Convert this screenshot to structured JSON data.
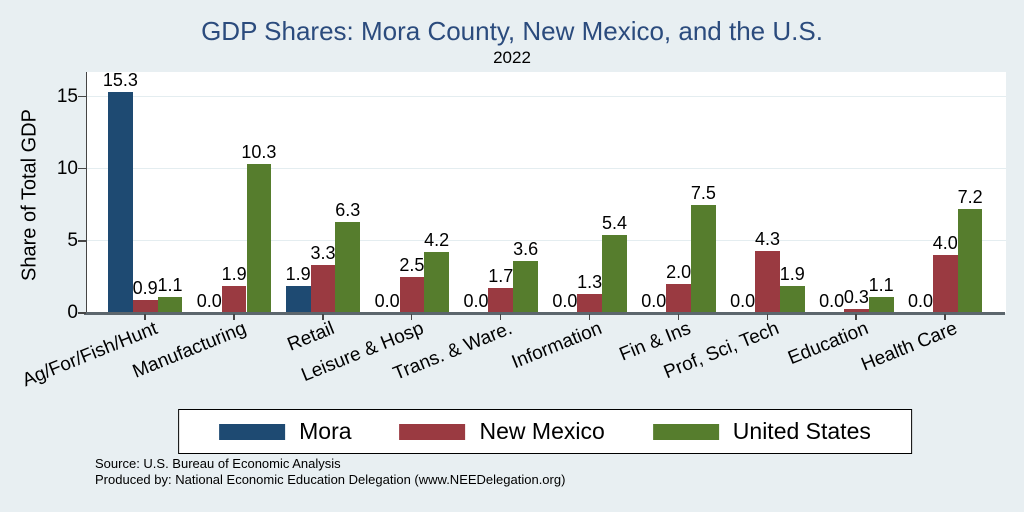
{
  "chart_data": {
    "type": "bar",
    "title": "GDP Shares: Mora County, New Mexico, and the U.S.",
    "subtitle": "2022",
    "xlabel": "",
    "ylabel": "Share of Total GDP",
    "categories": [
      "Ag/For/Fish/Hunt",
      "Manufacturing",
      "Retail",
      "Leisure & Hosp",
      "Trans. & Ware.",
      "Information",
      "Fin & Ins",
      "Prof, Sci, Tech",
      "Education",
      "Health Care"
    ],
    "series": [
      {
        "name": "Mora",
        "color": "#1e4a72",
        "values": [
          15.3,
          0.0,
          1.9,
          0.0,
          0.0,
          0.0,
          0.0,
          0.0,
          0.0,
          0.0
        ]
      },
      {
        "name": "New Mexico",
        "color": "#9a3a41",
        "values": [
          0.9,
          1.9,
          3.3,
          2.5,
          1.7,
          1.3,
          2.0,
          4.3,
          0.3,
          4.0
        ]
      },
      {
        "name": "United States",
        "color": "#567d2d",
        "values": [
          1.1,
          10.3,
          6.3,
          4.2,
          3.6,
          5.4,
          7.5,
          1.9,
          1.1,
          7.2
        ]
      }
    ],
    "yticks": [
      0,
      5,
      10,
      15
    ],
    "ylim": [
      0,
      16.7
    ],
    "grid": true,
    "bar_value_labels": true,
    "legend_position": "bottom"
  },
  "notes": {
    "source": "Source: U.S. Bureau of Economic Analysis",
    "produced_by": "Produced by: National Economic Education Delegation (www.NEEDelegation.org)"
  },
  "style_colors": {
    "background": "#e8eff2",
    "plot_background": "#ffffff",
    "title_color": "#2b4b7d",
    "gridline": "#e4edf0",
    "axis": "#454545",
    "baseline": "#5c666d"
  }
}
